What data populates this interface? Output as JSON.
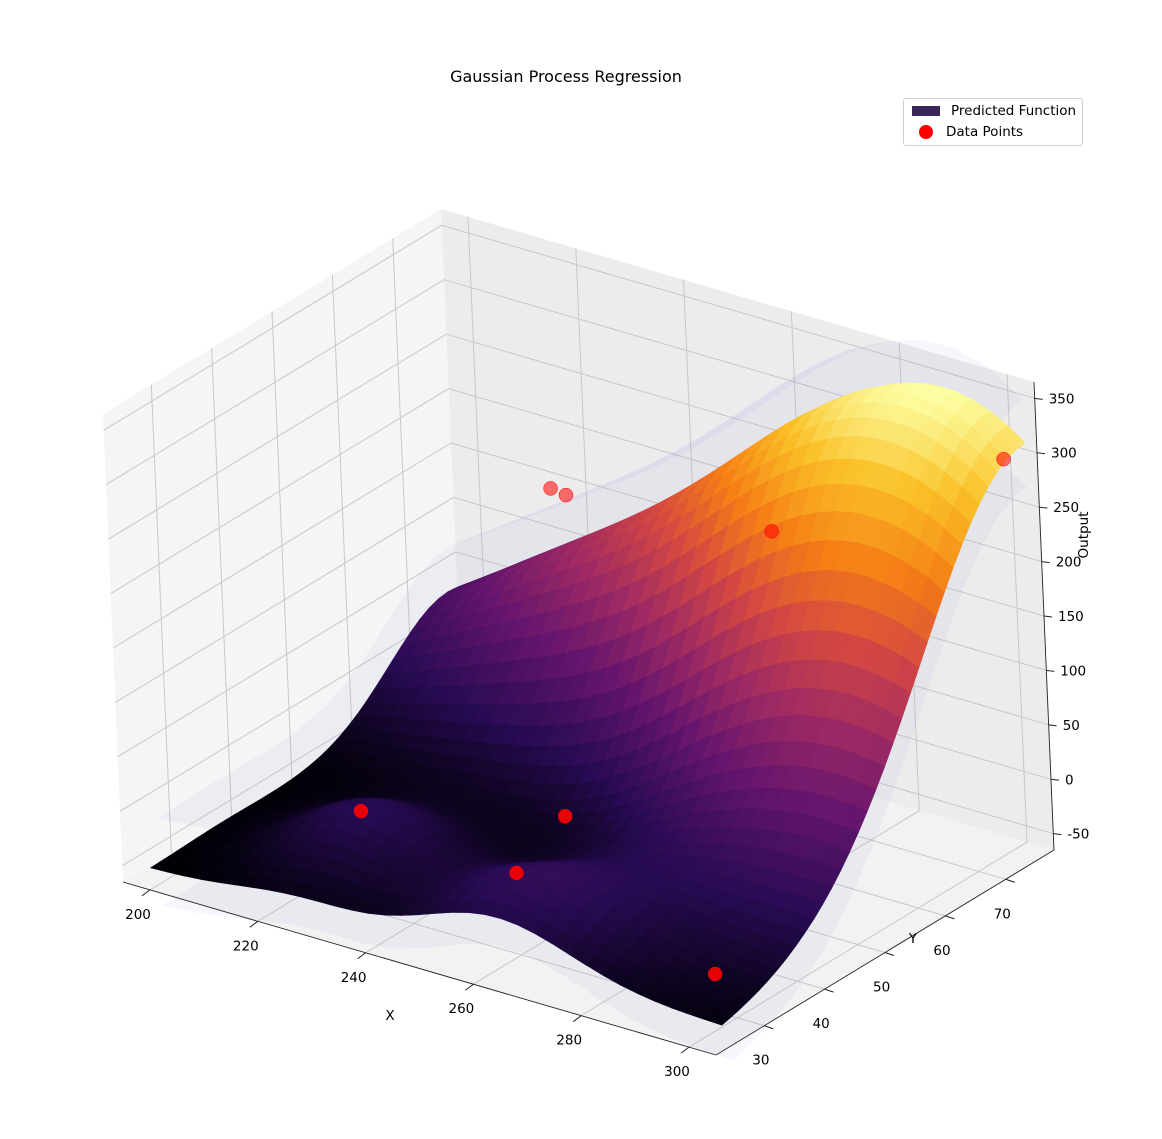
{
  "chart_data": {
    "type": "surface3d",
    "title": "Gaussian Process Regression",
    "xlabel": "X",
    "ylabel": "Y",
    "zlabel": "Output",
    "xlim": [
      195,
      305
    ],
    "ylim": [
      22,
      78
    ],
    "zlim": [
      -65,
      365
    ],
    "x_ticks": [
      "200",
      "220",
      "240",
      "260",
      "280",
      "300"
    ],
    "y_ticks": [
      "30",
      "40",
      "50",
      "60",
      "70"
    ],
    "z_ticks": [
      "-50",
      "0",
      "50",
      "100",
      "150",
      "200",
      "250",
      "300",
      "350"
    ],
    "legend": {
      "position": "top-right",
      "entries": [
        {
          "label": "Predicted Function",
          "kind": "surface",
          "color": "#3b2559"
        },
        {
          "label": "Data Points",
          "kind": "marker",
          "color": "#ff0000"
        }
      ]
    },
    "surface_colormap": "inferno",
    "confidence_band_color": "#8080e6",
    "data_points": [
      {
        "x": 224,
        "y": 36,
        "z": -5
      },
      {
        "x": 262,
        "y": 28,
        "z": 20
      },
      {
        "x": 302,
        "y": 25,
        "z": -5
      },
      {
        "x": 246,
        "y": 50,
        "z": -25
      },
      {
        "x": 218,
        "y": 74,
        "z": 155
      },
      {
        "x": 222,
        "y": 73,
        "z": 158
      },
      {
        "x": 258,
        "y": 75,
        "z": 170
      },
      {
        "x": 301,
        "y": 76,
        "z": 295
      }
    ],
    "grid": true
  }
}
